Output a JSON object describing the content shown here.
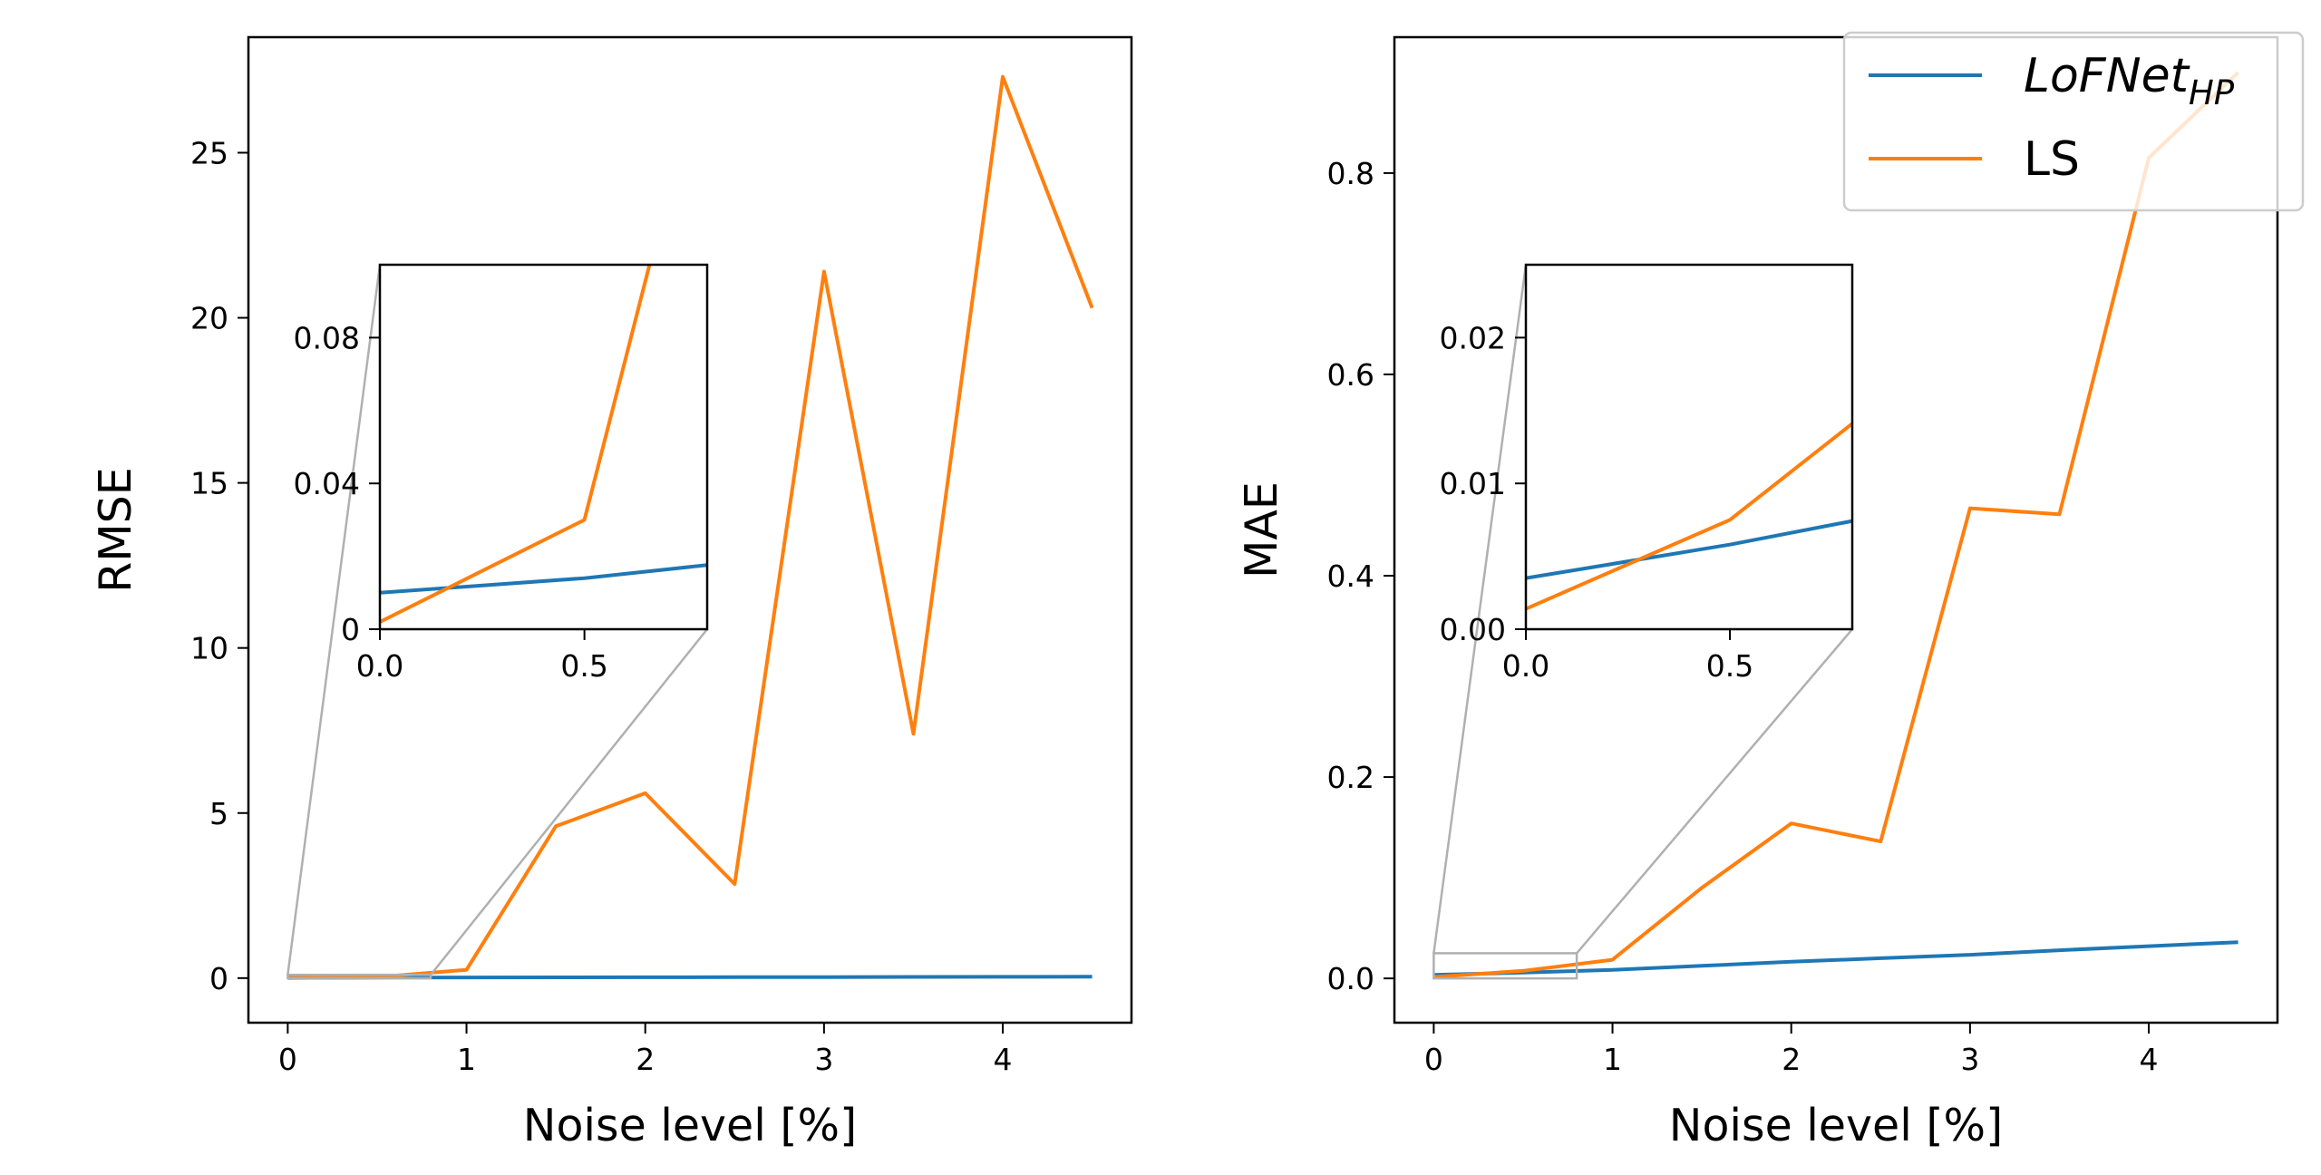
{
  "colors": {
    "lofnet": "#1f77b4",
    "ls": "#ff7f0e",
    "zoom": "#b0b0b0",
    "axis": "#000000"
  },
  "legend": {
    "entries": [
      {
        "name": "LoFNet",
        "sub": "HP",
        "color": "#1f77b4"
      },
      {
        "name": "LS",
        "color": "#ff7f0e"
      }
    ]
  },
  "chart_data": [
    {
      "type": "line",
      "xlabel": "Noise level [%]",
      "ylabel": "RMSE",
      "xlim": [
        -0.22,
        4.72
      ],
      "ylim": [
        -1.35,
        28.5
      ],
      "xticks": [
        0,
        1,
        2,
        3,
        4
      ],
      "xtick_labels": [
        "0",
        "1",
        "2",
        "3",
        "4"
      ],
      "yticks": [
        0,
        5,
        10,
        15,
        20,
        25
      ],
      "ytick_labels": [
        "0",
        "5",
        "10",
        "15",
        "20",
        "25"
      ],
      "series": [
        {
          "name": "LoFNet_HP",
          "x": [
            0,
            0.5,
            1,
            1.5,
            2,
            2.5,
            3,
            3.5,
            4,
            4.5
          ],
          "y": [
            0.01,
            0.014,
            0.02,
            0.022,
            0.025,
            0.028,
            0.032,
            0.036,
            0.04,
            0.045
          ]
        },
        {
          "name": "LS",
          "x": [
            0,
            0.5,
            1,
            1.5,
            2,
            2.5,
            3,
            3.5,
            4,
            4.5
          ],
          "y": [
            0.002,
            0.03,
            0.25,
            4.6,
            5.6,
            2.85,
            21.4,
            7.4,
            27.3,
            20.3
          ]
        }
      ],
      "inset": {
        "xlim": [
          0,
          0.8
        ],
        "ylim": [
          0,
          0.1
        ],
        "xticks": [
          0,
          0.5
        ],
        "xtick_labels": [
          "0.0",
          "0.5"
        ],
        "yticks": [
          0,
          0.04,
          0.08
        ],
        "ytick_labels": [
          "0",
          "0.04",
          "0.08"
        ]
      }
    },
    {
      "type": "line",
      "xlabel": "Noise level [%]",
      "ylabel": "MAE",
      "xlim": [
        -0.22,
        4.72
      ],
      "ylim": [
        -0.044,
        0.935
      ],
      "xticks": [
        0,
        1,
        2,
        3,
        4
      ],
      "xtick_labels": [
        "0",
        "1",
        "2",
        "3",
        "4"
      ],
      "yticks": [
        0,
        0.2,
        0.4,
        0.6,
        0.8
      ],
      "ytick_labels": [
        "0.0",
        "0.2",
        "0.4",
        "0.6",
        "0.8"
      ],
      "series": [
        {
          "name": "LoFNet_HP",
          "x": [
            0,
            0.5,
            1,
            1.5,
            2,
            2.5,
            3,
            3.5,
            4,
            4.5
          ],
          "y": [
            0.0035,
            0.0058,
            0.0085,
            0.0125,
            0.0165,
            0.02,
            0.0235,
            0.028,
            0.032,
            0.036
          ]
        },
        {
          "name": "LS",
          "x": [
            0,
            0.5,
            1,
            1.5,
            2,
            2.5,
            3,
            3.5,
            4,
            4.5
          ],
          "y": [
            0.0014,
            0.0075,
            0.0185,
            0.09,
            0.154,
            0.136,
            0.467,
            0.461,
            0.815,
            0.9
          ]
        }
      ],
      "inset": {
        "xlim": [
          0,
          0.8
        ],
        "ylim": [
          0,
          0.025
        ],
        "xticks": [
          0,
          0.5
        ],
        "xtick_labels": [
          "0.0",
          "0.5"
        ],
        "yticks": [
          0,
          0.01,
          0.02
        ],
        "ytick_labels": [
          "0.00",
          "0.01",
          "0.02"
        ]
      }
    }
  ]
}
